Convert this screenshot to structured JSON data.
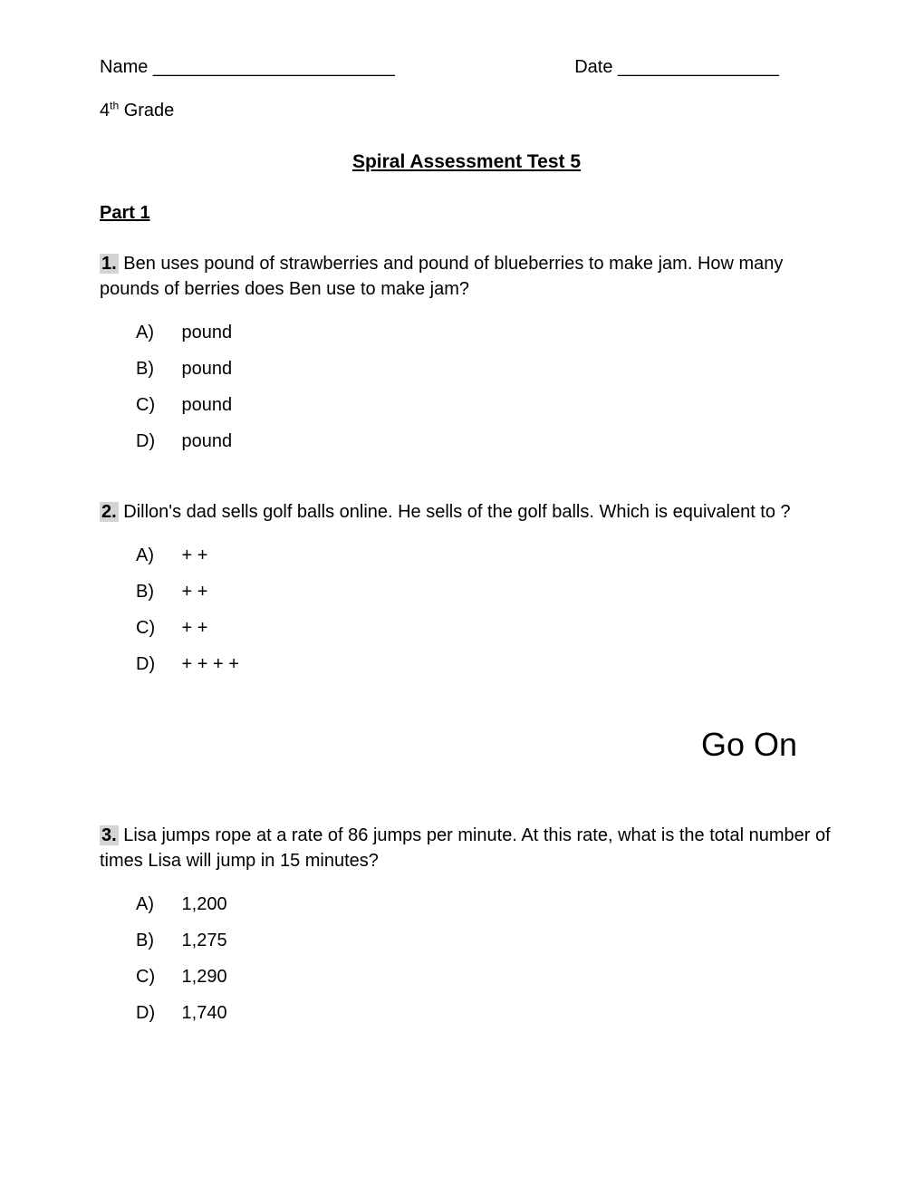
{
  "header": {
    "name_label": "Name ________________________",
    "date_label": "Date ________________",
    "grade_prefix": "4",
    "grade_suffix": "th",
    "grade_text": " Grade"
  },
  "title": "Spiral Assessment Test 5",
  "part_heading": "Part 1",
  "questions": [
    {
      "number": "1.",
      "text": " Ben uses   pound of strawberries and   pound of blueberries to make jam. How many pounds of berries does Ben use to make jam?",
      "choices": [
        {
          "letter": "A)",
          "text": "  pound"
        },
        {
          "letter": "B)",
          "text": "  pound"
        },
        {
          "letter": "C)",
          "text": "  pound"
        },
        {
          "letter": "D)",
          "text": "  pound"
        }
      ]
    },
    {
      "number": "2.",
      "text": "  Dillon's dad sells golf balls online.  He sells  of the golf balls.  Which is equivalent to  ?",
      "choices": [
        {
          "letter": "A)",
          "text": " +  + "
        },
        {
          "letter": "B)",
          "text": " +  + "
        },
        {
          "letter": "C)",
          "text": " +  + "
        },
        {
          "letter": "D)",
          "text": " +  +  +  + "
        }
      ]
    },
    {
      "number": "3.",
      "text": " Lisa jumps rope at a rate of 86 jumps per minute.  At this rate, what is the total number of times Lisa will jump in 15 minutes?",
      "choices": [
        {
          "letter": "A)",
          "text": " 1,200"
        },
        {
          "letter": "B)",
          "text": " 1,275"
        },
        {
          "letter": "C)",
          "text": " 1,290"
        },
        {
          "letter": "D)",
          "text": " 1,740"
        }
      ]
    }
  ],
  "go_on": "Go On"
}
